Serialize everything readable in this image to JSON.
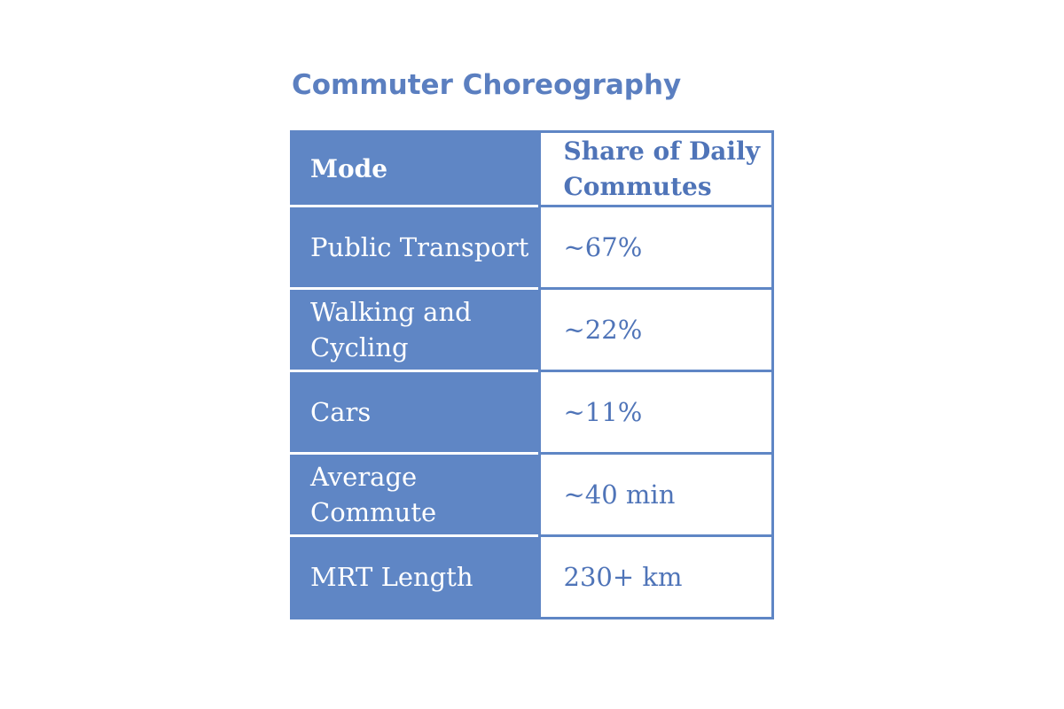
{
  "title": "Commuter Choreography",
  "table": {
    "headers": [
      "Mode",
      "Share of Daily Commutes"
    ],
    "rows": [
      [
        "Public Transport",
        "~67%"
      ],
      [
        "Walking and Cycling",
        "~22%"
      ],
      [
        "Cars",
        "~11%"
      ],
      [
        "Average Commute",
        "~40 min"
      ],
      [
        "MRT Length",
        "230+ km"
      ]
    ]
  },
  "colors": {
    "accent": "#5f86c5",
    "title": "#5b7fc0",
    "header_text": "#ffffff",
    "value_text": "#4f74b8"
  }
}
